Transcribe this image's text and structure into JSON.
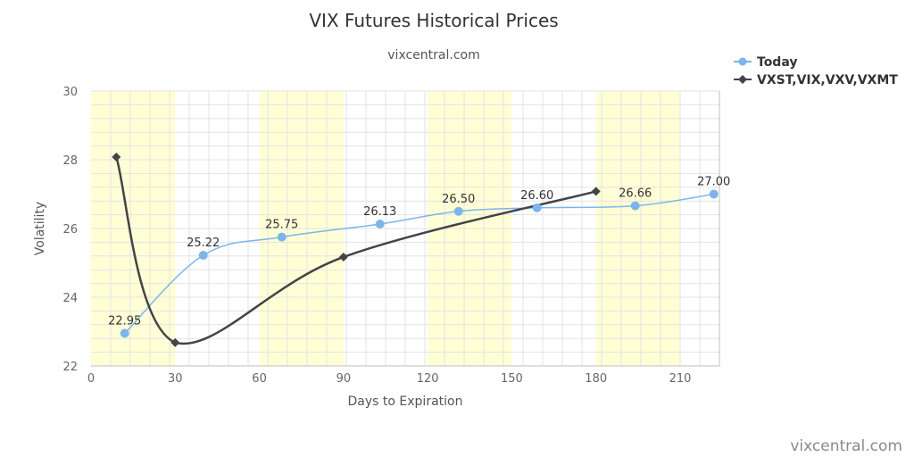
{
  "chart_data": {
    "type": "line",
    "title": "VIX Futures Historical Prices",
    "subtitle": "vixcentral.com",
    "xlabel": "Days to Expiration",
    "ylabel": "Volatility",
    "xlim": [
      0,
      224
    ],
    "ylim": [
      22,
      30
    ],
    "x_ticks": [
      0,
      30,
      60,
      90,
      120,
      150,
      180,
      210
    ],
    "y_ticks": [
      22,
      24,
      26,
      28,
      30
    ],
    "highlight_bands": [
      [
        0,
        30
      ],
      [
        60,
        90
      ],
      [
        120,
        150
      ],
      [
        180,
        210
      ]
    ],
    "grid": true,
    "legend_position": "top-right",
    "series": [
      {
        "name": "Today",
        "color": "#7cb5ec",
        "marker": "circle",
        "points": [
          {
            "x": 12,
            "y": 22.95,
            "label": "22.95"
          },
          {
            "x": 40,
            "y": 25.22,
            "label": "25.22"
          },
          {
            "x": 68,
            "y": 25.75,
            "label": "25.75"
          },
          {
            "x": 103,
            "y": 26.13,
            "label": "26.13"
          },
          {
            "x": 131,
            "y": 26.5,
            "label": "26.50"
          },
          {
            "x": 159,
            "y": 26.6,
            "label": "26.60"
          },
          {
            "x": 194,
            "y": 26.66,
            "label": "26.66"
          },
          {
            "x": 222,
            "y": 27.0,
            "label": "27.00"
          }
        ]
      },
      {
        "name": "VXST,VIX,VXV,VXMT",
        "color": "#434348",
        "marker": "diamond",
        "points": [
          {
            "x": 9,
            "y": 28.08
          },
          {
            "x": 30,
            "y": 22.68
          },
          {
            "x": 90,
            "y": 25.17
          },
          {
            "x": 180,
            "y": 27.08
          }
        ]
      }
    ]
  },
  "credit": "vixcentral.com"
}
